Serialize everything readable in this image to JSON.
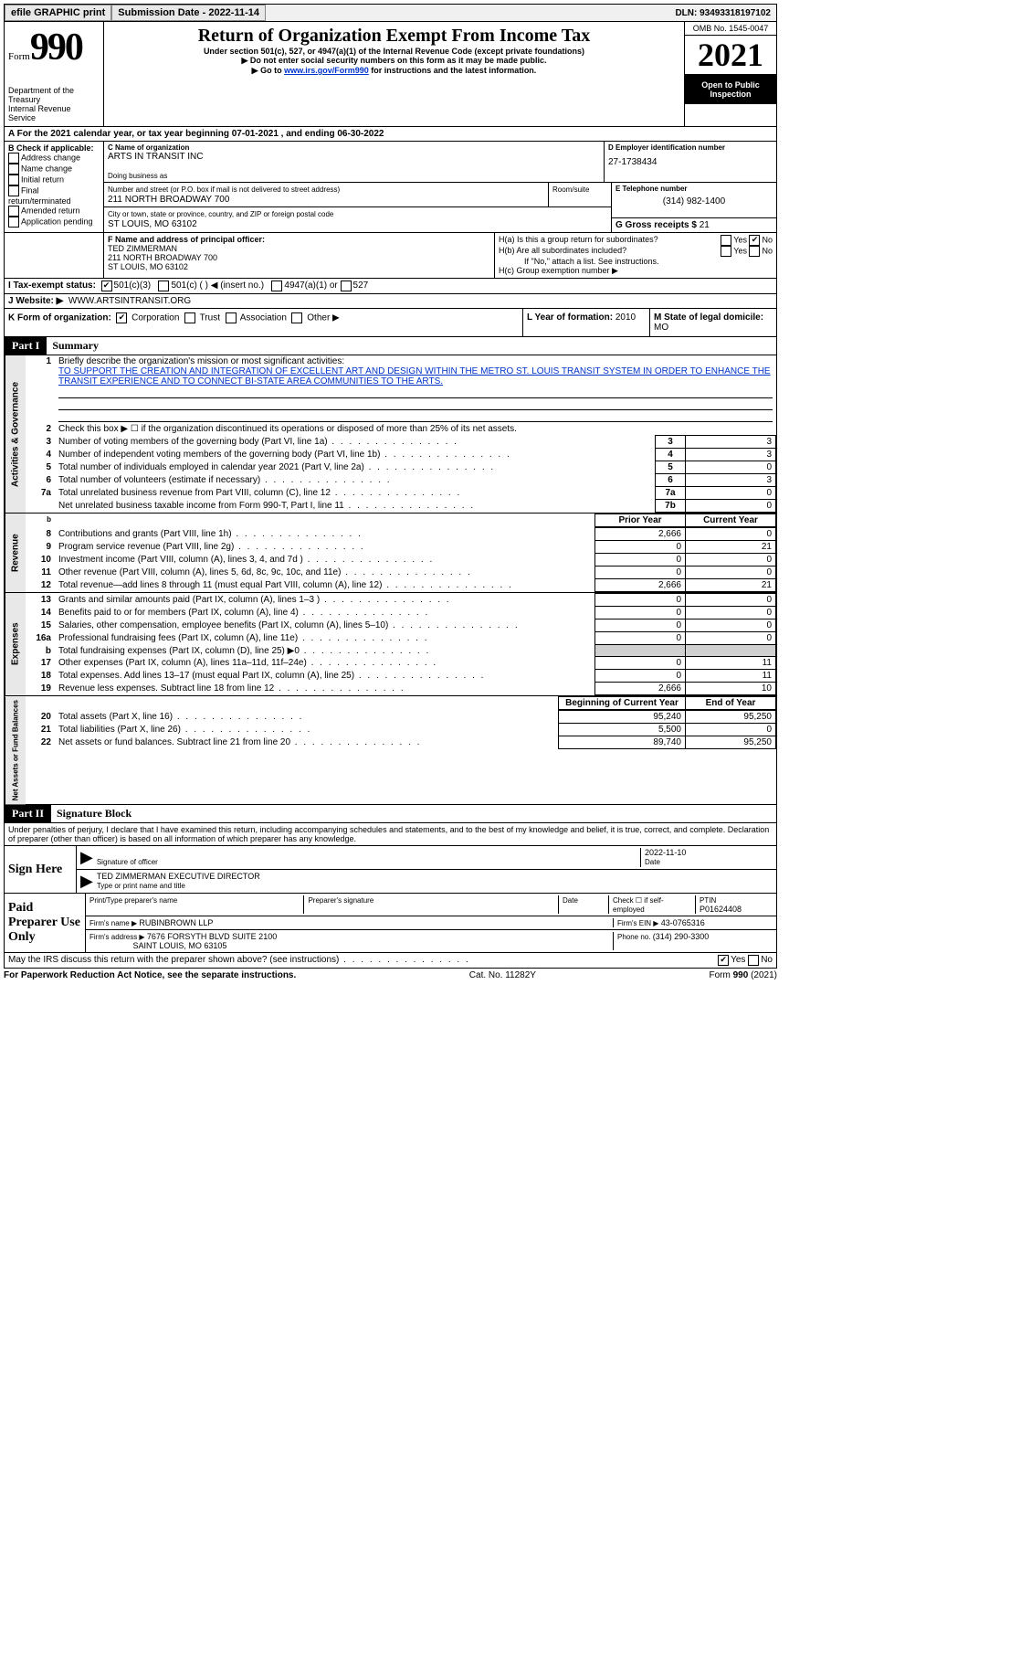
{
  "topbar": {
    "efile": "efile GRAPHIC print",
    "submission_label": "Submission Date - ",
    "submission_date": "2022-11-14",
    "dln_label": "DLN: ",
    "dln": "93493318197102"
  },
  "header": {
    "form_word": "Form",
    "form_num": "990",
    "dept": "Department of the Treasury\nInternal Revenue Service",
    "title": "Return of Organization Exempt From Income Tax",
    "sub1": "Under section 501(c), 527, or 4947(a)(1) of the Internal Revenue Code (except private foundations)",
    "sub2": "▶ Do not enter social security numbers on this form as it may be made public.",
    "sub3_pre": "▶ Go to ",
    "sub3_link": "www.irs.gov/Form990",
    "sub3_post": " for instructions and the latest information.",
    "omb": "OMB No. 1545-0047",
    "year": "2021",
    "open": "Open to Public Inspection"
  },
  "A": {
    "text_pre": "A For the 2021 calendar year, or tax year beginning ",
    "begin": "07-01-2021",
    "mid": "  , and ending ",
    "end": "06-30-2022"
  },
  "B": {
    "label": "B Check if applicable:",
    "opts": [
      "Address change",
      "Name change",
      "Initial return",
      "Final return/terminated",
      "Amended return",
      "Application pending"
    ]
  },
  "C": {
    "name_lbl": "C Name of organization",
    "name": "ARTS IN TRANSIT INC",
    "dba_lbl": "Doing business as",
    "addr_lbl": "Number and street (or P.O. box if mail is not delivered to street address)",
    "room_lbl": "Room/suite",
    "addr": "211 NORTH BROADWAY 700",
    "city_lbl": "City or town, state or province, country, and ZIP or foreign postal code",
    "city": "ST LOUIS, MO  63102"
  },
  "D": {
    "lbl": "D Employer identification number",
    "val": "27-1738434"
  },
  "E": {
    "lbl": "E Telephone number",
    "val": "(314) 982-1400"
  },
  "G": {
    "lbl": "G Gross receipts $ ",
    "val": "21"
  },
  "F": {
    "lbl": "F Name and address of principal officer:",
    "name": "TED ZIMMERMAN",
    "addr1": "211 NORTH BROADWAY 700",
    "addr2": "ST LOUIS, MO  63102"
  },
  "H": {
    "a": "H(a)  Is this a group return for subordinates?",
    "b": "H(b)  Are all subordinates included?",
    "note": "If \"No,\" attach a list. See instructions.",
    "c": "H(c)  Group exemption number ▶"
  },
  "I": {
    "lbl": "I   Tax-exempt status:",
    "o1": "501(c)(3)",
    "o2": "501(c) (   ) ◀ (insert no.)",
    "o3": "4947(a)(1) or",
    "o4": "527"
  },
  "J": {
    "lbl": "J   Website: ▶",
    "val": "WWW.ARTSINTRANSIT.ORG"
  },
  "K": {
    "lbl": "K Form of organization:",
    "opts": [
      "Corporation",
      "Trust",
      "Association",
      "Other ▶"
    ]
  },
  "L": {
    "lbl": "L Year of formation: ",
    "val": "2010"
  },
  "M": {
    "lbl": "M State of legal domicile:",
    "val": "MO"
  },
  "part1": {
    "label": "Part I",
    "title": "Summary",
    "line1_lbl": "Briefly describe the organization's mission or most significant activities:",
    "mission": "TO SUPPORT THE CREATION AND INTEGRATION OF EXCELLENT ART AND DESIGN WITHIN THE METRO ST. LOUIS TRANSIT SYSTEM IN ORDER TO ENHANCE THE TRANSIT EXPERIENCE AND TO CONNECT BI-STATE AREA COMMUNITIES TO THE ARTS.",
    "line2": "Check this box ▶ ☐ if the organization discontinued its operations or disposed of more than 25% of its net assets.",
    "tab_ag": "Activities & Governance",
    "tab_rev": "Revenue",
    "tab_exp": "Expenses",
    "tab_na": "Net Assets or Fund Balances",
    "prior": "Prior Year",
    "current": "Current Year",
    "boy": "Beginning of Current Year",
    "eoy": "End of Year",
    "rows_ag": [
      {
        "n": "3",
        "t": "Number of voting members of the governing body (Part VI, line 1a)",
        "box": "3",
        "v": "3"
      },
      {
        "n": "4",
        "t": "Number of independent voting members of the governing body (Part VI, line 1b)",
        "box": "4",
        "v": "3"
      },
      {
        "n": "5",
        "t": "Total number of individuals employed in calendar year 2021 (Part V, line 2a)",
        "box": "5",
        "v": "0"
      },
      {
        "n": "6",
        "t": "Total number of volunteers (estimate if necessary)",
        "box": "6",
        "v": "3"
      },
      {
        "n": "7a",
        "t": "Total unrelated business revenue from Part VIII, column (C), line 12",
        "box": "7a",
        "v": "0"
      },
      {
        "n": "",
        "t": "Net unrelated business taxable income from Form 990-T, Part I, line 11",
        "box": "7b",
        "v": "0"
      }
    ],
    "rows_rev": [
      {
        "n": "8",
        "t": "Contributions and grants (Part VIII, line 1h)",
        "p": "2,666",
        "c": "0"
      },
      {
        "n": "9",
        "t": "Program service revenue (Part VIII, line 2g)",
        "p": "0",
        "c": "21"
      },
      {
        "n": "10",
        "t": "Investment income (Part VIII, column (A), lines 3, 4, and 7d )",
        "p": "0",
        "c": "0"
      },
      {
        "n": "11",
        "t": "Other revenue (Part VIII, column (A), lines 5, 6d, 8c, 9c, 10c, and 11e)",
        "p": "0",
        "c": "0"
      },
      {
        "n": "12",
        "t": "Total revenue—add lines 8 through 11 (must equal Part VIII, column (A), line 12)",
        "p": "2,666",
        "c": "21"
      }
    ],
    "rows_exp": [
      {
        "n": "13",
        "t": "Grants and similar amounts paid (Part IX, column (A), lines 1–3 )",
        "p": "0",
        "c": "0"
      },
      {
        "n": "14",
        "t": "Benefits paid to or for members (Part IX, column (A), line 4)",
        "p": "0",
        "c": "0"
      },
      {
        "n": "15",
        "t": "Salaries, other compensation, employee benefits (Part IX, column (A), lines 5–10)",
        "p": "0",
        "c": "0"
      },
      {
        "n": "16a",
        "t": "Professional fundraising fees (Part IX, column (A), line 11e)",
        "p": "0",
        "c": "0"
      },
      {
        "n": "b",
        "t": "Total fundraising expenses (Part IX, column (D), line 25) ▶0",
        "p": "",
        "c": "",
        "grey": true
      },
      {
        "n": "17",
        "t": "Other expenses (Part IX, column (A), lines 11a–11d, 11f–24e)",
        "p": "0",
        "c": "11"
      },
      {
        "n": "18",
        "t": "Total expenses. Add lines 13–17 (must equal Part IX, column (A), line 25)",
        "p": "0",
        "c": "11"
      },
      {
        "n": "19",
        "t": "Revenue less expenses. Subtract line 18 from line 12",
        "p": "2,666",
        "c": "10"
      }
    ],
    "rows_na": [
      {
        "n": "20",
        "t": "Total assets (Part X, line 16)",
        "p": "95,240",
        "c": "95,250"
      },
      {
        "n": "21",
        "t": "Total liabilities (Part X, line 26)",
        "p": "5,500",
        "c": "0"
      },
      {
        "n": "22",
        "t": "Net assets or fund balances. Subtract line 21 from line 20",
        "p": "89,740",
        "c": "95,250"
      }
    ]
  },
  "part2": {
    "label": "Part II",
    "title": "Signature Block",
    "penalties": "Under penalties of perjury, I declare that I have examined this return, including accompanying schedules and statements, and to the best of my knowledge and belief, it is true, correct, and complete. Declaration of preparer (other than officer) is based on all information of which preparer has any knowledge.",
    "sign_here": "Sign Here",
    "sig_officer": "Signature of officer",
    "sig_date": "2022-11-10",
    "date_lbl": "Date",
    "officer_name": "TED ZIMMERMAN  EXECUTIVE DIRECTOR",
    "type_name": "Type or print name and title",
    "paid": "Paid Preparer Use Only",
    "prep_name_lbl": "Print/Type preparer's name",
    "prep_sig_lbl": "Preparer's signature",
    "check_self": "Check ☐ if self-employed",
    "ptin_lbl": "PTIN",
    "ptin": "P01624408",
    "firm_name_lbl": "Firm's name   ▶ ",
    "firm_name": "RUBINBROWN LLP",
    "firm_ein_lbl": "Firm's EIN ▶ ",
    "firm_ein": "43-0765316",
    "firm_addr_lbl": "Firm's address ▶ ",
    "firm_addr1": "7676 FORSYTH BLVD SUITE 2100",
    "firm_addr2": "SAINT LOUIS, MO  63105",
    "phone_lbl": "Phone no. ",
    "phone": "(314) 290-3300",
    "discuss": "May the IRS discuss this return with the preparer shown above? (see instructions)"
  },
  "footer": {
    "left": "For Paperwork Reduction Act Notice, see the separate instructions.",
    "mid": "Cat. No. 11282Y",
    "right": "Form 990 (2021)"
  }
}
